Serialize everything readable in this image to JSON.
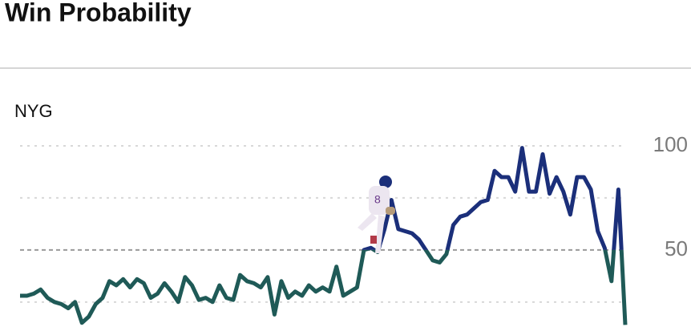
{
  "chart_data": {
    "type": "line",
    "title": "Win Probability",
    "team": "NYG",
    "values": [
      28,
      28,
      29,
      31,
      27,
      25,
      24,
      22,
      25,
      15,
      18,
      24,
      27,
      35,
      33,
      36,
      32,
      36,
      34,
      27,
      29,
      34,
      30,
      25,
      37,
      33,
      26,
      27,
      25,
      33,
      27,
      26,
      38,
      35,
      34,
      32,
      37,
      19,
      35,
      27,
      30,
      28,
      33,
      30,
      32,
      30,
      42,
      28,
      30,
      32,
      50,
      51,
      49,
      60,
      74,
      60,
      59,
      58,
      55,
      50,
      45,
      44,
      48,
      62,
      66,
      67,
      70,
      73,
      74,
      88,
      85,
      85,
      78,
      99,
      78,
      78,
      96,
      77,
      85,
      78,
      67,
      85,
      85,
      79,
      59,
      51,
      35,
      79,
      14
    ],
    "ylim": [
      13,
      105
    ],
    "yticks": [
      50,
      100
    ],
    "minor_yticks": [
      25,
      75
    ],
    "reference_line": 50,
    "color_above": "#1b2f7a",
    "color_below": "#1f5a57",
    "grid": true
  }
}
